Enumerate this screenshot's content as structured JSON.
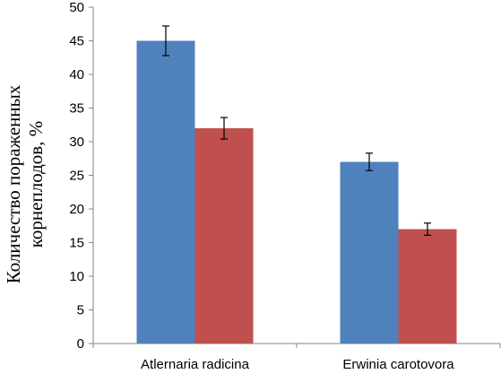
{
  "chart_data": {
    "type": "bar",
    "title": "",
    "xlabel": "",
    "ylabel_lines": [
      "Количество пораженных",
      "корнеплодов, %"
    ],
    "categories": [
      "Atlernaria radicina",
      "Erwinia carotovora"
    ],
    "series": [
      {
        "color": "#4F81BD",
        "values": [
          45,
          27
        ],
        "errors": [
          2.2,
          1.3
        ]
      },
      {
        "color": "#C0504D",
        "values": [
          32,
          17
        ],
        "errors": [
          1.6,
          0.9
        ]
      }
    ],
    "ylim": [
      0,
      50
    ],
    "yticks": [
      0,
      5,
      10,
      15,
      20,
      25,
      30,
      35,
      40,
      45,
      50
    ],
    "grid": false,
    "legend": "none"
  }
}
